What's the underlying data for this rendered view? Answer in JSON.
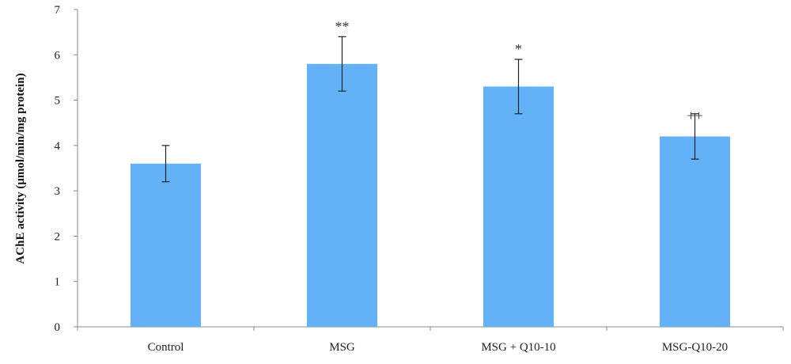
{
  "chart_data": {
    "type": "bar",
    "categories": [
      "Control",
      "MSG",
      "MSG + Q10-10",
      "MSG-Q10-20"
    ],
    "values": [
      3.6,
      5.8,
      5.3,
      4.2
    ],
    "error_low": [
      3.2,
      5.2,
      4.7,
      3.7
    ],
    "error_high": [
      4.0,
      6.4,
      5.9,
      4.7
    ],
    "annotations": [
      "",
      "**",
      "*",
      "++"
    ],
    "title": "",
    "xlabel": "",
    "ylabel": "AChE activity (μmol/min/mg protein)",
    "ylim": [
      0,
      7
    ],
    "yticks": [
      "0",
      "1",
      "2",
      "3",
      "4",
      "5",
      "6",
      "7"
    ],
    "grid": false,
    "legend": "none",
    "bar_color": "#63b2f7",
    "axis_color": "#888888",
    "errorbar_color": "#222222"
  }
}
